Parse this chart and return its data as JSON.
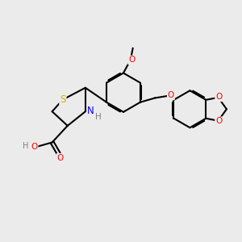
{
  "bg_color": "#ebebeb",
  "bond_color": "#000000",
  "S_color": "#c8b400",
  "N_color": "#0000ff",
  "O_color": "#ff0000",
  "H_color": "#808080",
  "bond_width": 1.5,
  "figsize": [
    3.0,
    3.0
  ],
  "dpi": 100,
  "xlim": [
    0,
    10
  ],
  "ylim": [
    0,
    10
  ]
}
